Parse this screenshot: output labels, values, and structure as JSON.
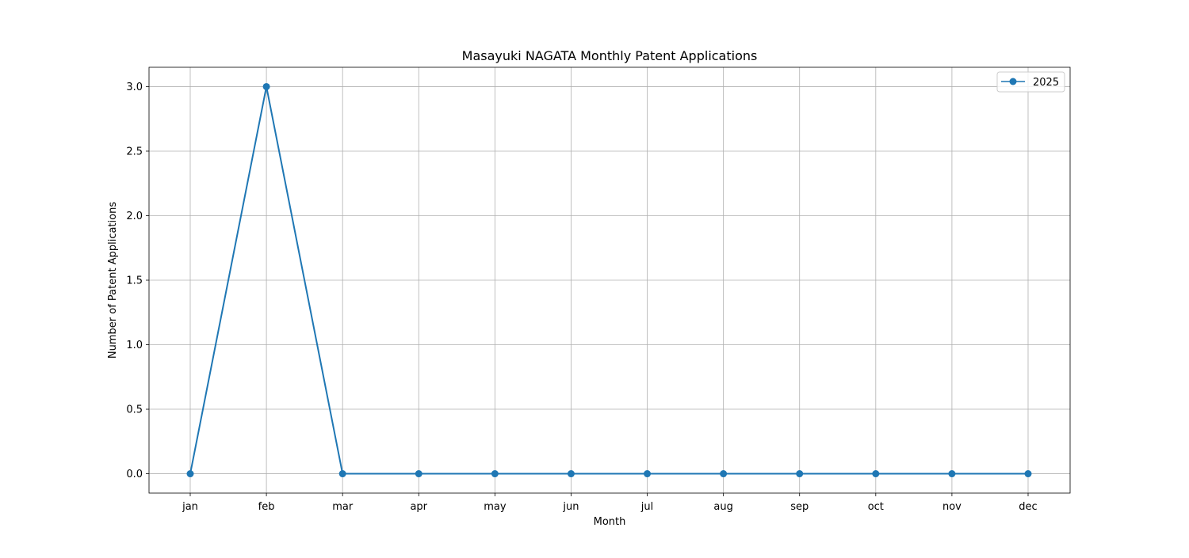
{
  "chart_data": {
    "type": "line",
    "title": "Masayuki NAGATA Monthly Patent Applications",
    "xlabel": "Month",
    "ylabel": "Number of Patent Applications",
    "categories": [
      "jan",
      "feb",
      "mar",
      "apr",
      "may",
      "jun",
      "jul",
      "aug",
      "sep",
      "oct",
      "nov",
      "dec"
    ],
    "series": [
      {
        "name": "2025",
        "color": "#1f77b4",
        "marker": "circle",
        "values": [
          0,
          3,
          0,
          0,
          0,
          0,
          0,
          0,
          0,
          0,
          0,
          0
        ]
      }
    ],
    "ylim": [
      -0.15,
      3.15
    ],
    "yticks": [
      0.0,
      0.5,
      1.0,
      1.5,
      2.0,
      2.5,
      3.0
    ],
    "ytick_labels": [
      "0.0",
      "0.5",
      "1.0",
      "1.5",
      "2.0",
      "2.5",
      "3.0"
    ],
    "grid": true,
    "legend_position": "top-right"
  }
}
